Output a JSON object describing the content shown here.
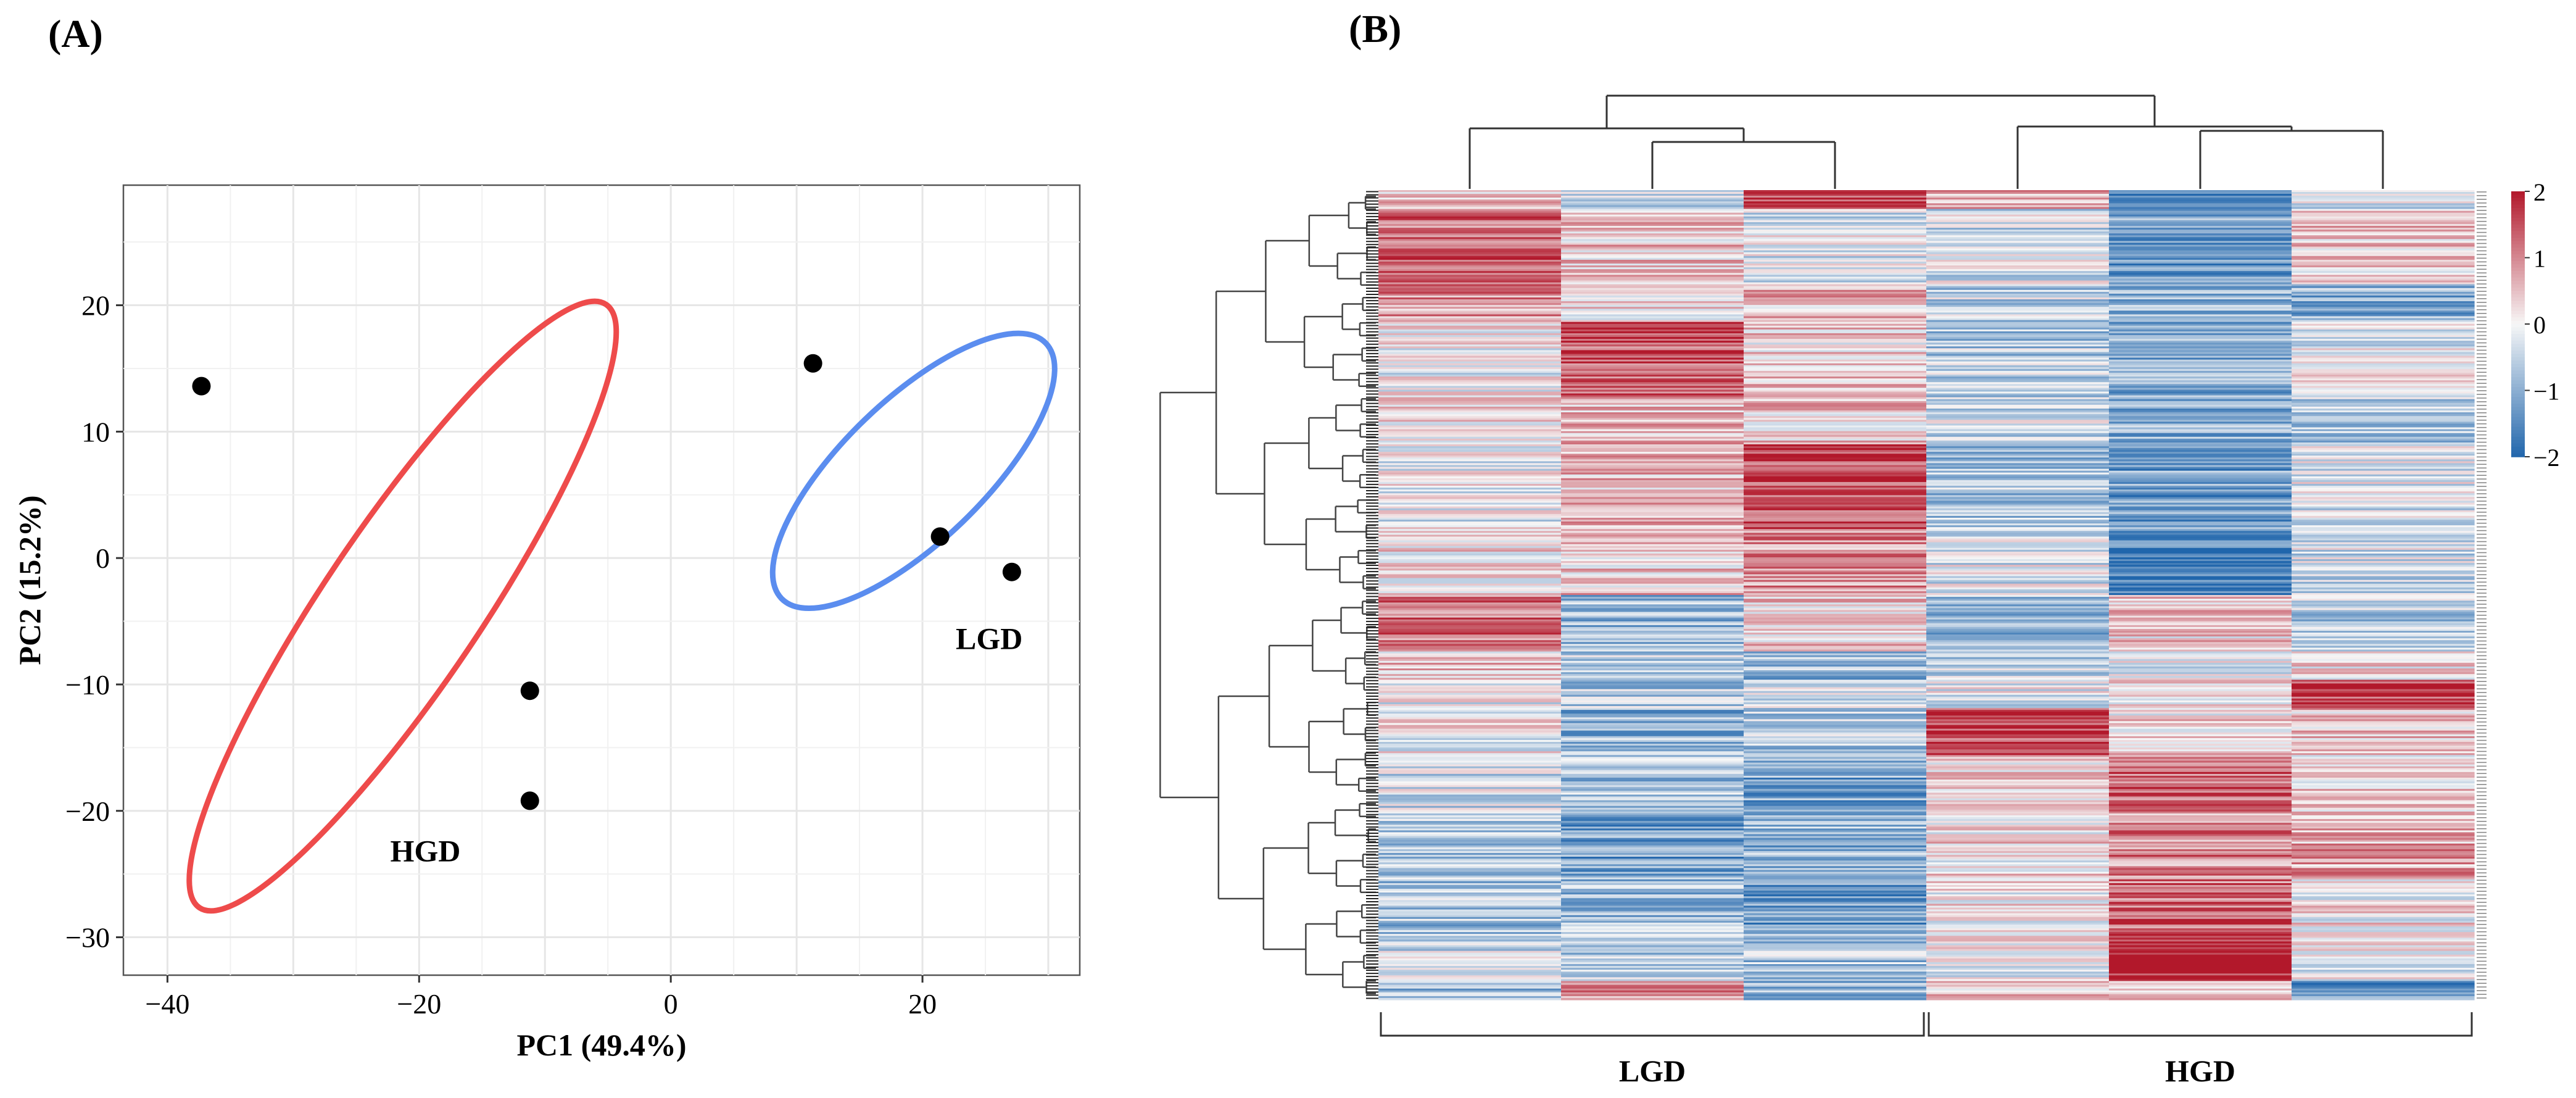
{
  "panels": {
    "a_label": "(A)",
    "b_label": "(B)"
  },
  "chart_data": [
    {
      "type": "scatter",
      "title": "",
      "xlabel": "PC1 (49.4%)",
      "ylabel": "PC2 (15.2%)",
      "xlim": [
        -43.5,
        32.5
      ],
      "ylim": [
        -33,
        29.5
      ],
      "xticks": [
        -40,
        -20,
        0,
        20
      ],
      "xtick_labels": [
        "−40",
        "−20",
        "0",
        "20"
      ],
      "yticks": [
        20,
        10,
        0,
        -10,
        -20,
        -30
      ],
      "ytick_labels": [
        "20",
        "10",
        "0",
        "−10",
        "−20",
        "−30"
      ],
      "grid": true,
      "series": [
        {
          "name": "HGD",
          "color": "#ee4b4b",
          "points": [
            [
              -37.3,
              13.6
            ],
            [
              -11.2,
              -10.5
            ],
            [
              -11.2,
              -19.2
            ]
          ]
        },
        {
          "name": "LGD",
          "color": "#5b8def",
          "points": [
            [
              11.3,
              15.4
            ],
            [
              21.4,
              1.7
            ],
            [
              27.1,
              -1.1
            ]
          ]
        }
      ],
      "ellipses": [
        {
          "group": "HGD",
          "color": "#ee4b4b",
          "center": [
            -21.3,
            -3.8
          ],
          "semi_axes": [
            28.9,
            6.2
          ],
          "angle_deg": -56
        },
        {
          "group": "LGD",
          "color": "#5b8def",
          "center": [
            19.3,
            6.9
          ],
          "semi_axes": [
            14.6,
            5.6
          ],
          "angle_deg": -44
        }
      ],
      "annotations": [
        {
          "text": "HGD",
          "at": [
            -19.5,
            -24
          ]
        },
        {
          "text": "LGD",
          "at": [
            25.3,
            -7.2
          ]
        }
      ]
    },
    {
      "type": "heatmap",
      "title": "",
      "columns": 6,
      "groups": [
        {
          "name": "LGD",
          "columns": [
            0,
            1,
            2
          ]
        },
        {
          "name": "HGD",
          "columns": [
            3,
            4,
            5
          ]
        }
      ],
      "color_scale": {
        "min": -2,
        "max": 2,
        "low": "#2166ac",
        "mid": "#f7f7f7",
        "high": "#b2182b",
        "ticks": [
          2,
          1,
          0,
          -1,
          -2
        ],
        "tick_labels": [
          "2",
          "1",
          "0",
          "−1",
          "−2"
        ]
      },
      "column_dendrogram": "((0,(1,2)),(3,(4,5)))",
      "row_blocks": [
        {
          "rows": 10,
          "values": [
            0.3,
            -0.4,
            1.6,
            0.5,
            -1.6,
            -0.2
          ]
        },
        {
          "rows": 40,
          "values": [
            1.3,
            0.4,
            -0.2,
            -0.3,
            -1.2,
            0.3
          ]
        },
        {
          "rows": 20,
          "values": [
            0.9,
            0.2,
            0.5,
            -0.5,
            -0.8,
            -1.0
          ]
        },
        {
          "rows": 40,
          "values": [
            0.0,
            1.5,
            0.3,
            -0.6,
            -1.1,
            -0.1
          ]
        },
        {
          "rows": 25,
          "values": [
            0.2,
            0.6,
            0.4,
            -0.3,
            -0.9,
            -0.6
          ]
        },
        {
          "rows": 45,
          "values": [
            -0.1,
            0.5,
            1.6,
            -0.7,
            -1.2,
            -0.2
          ]
        },
        {
          "rows": 35,
          "values": [
            0.2,
            0.4,
            0.9,
            -0.2,
            -1.7,
            -0.3
          ]
        },
        {
          "rows": 30,
          "values": [
            1.1,
            -0.8,
            0.3,
            -0.8,
            0.3,
            -0.6
          ]
        },
        {
          "rows": 15,
          "values": [
            0.4,
            -0.5,
            -0.9,
            -0.4,
            -0.2,
            0.3
          ]
        },
        {
          "rows": 15,
          "values": [
            -0.1,
            -0.6,
            -0.2,
            -0.2,
            0.1,
            1.7
          ]
        },
        {
          "rows": 25,
          "values": [
            0.0,
            -0.9,
            -0.6,
            1.6,
            0.2,
            0.5
          ]
        },
        {
          "rows": 30,
          "values": [
            -0.3,
            -0.7,
            -1.1,
            0.3,
            1.3,
            0.2
          ]
        },
        {
          "rows": 35,
          "values": [
            -0.6,
            -1.2,
            -0.9,
            0.2,
            1.0,
            0.7
          ]
        },
        {
          "rows": 30,
          "values": [
            -0.7,
            -0.8,
            -1.3,
            0.1,
            1.2,
            0.1
          ]
        },
        {
          "rows": 25,
          "values": [
            -0.4,
            -0.5,
            -0.7,
            -0.1,
            1.9,
            -0.1
          ]
        },
        {
          "rows": 10,
          "values": [
            -0.9,
            0.8,
            -0.8,
            0.4,
            0.2,
            -1.4
          ]
        }
      ]
    }
  ]
}
